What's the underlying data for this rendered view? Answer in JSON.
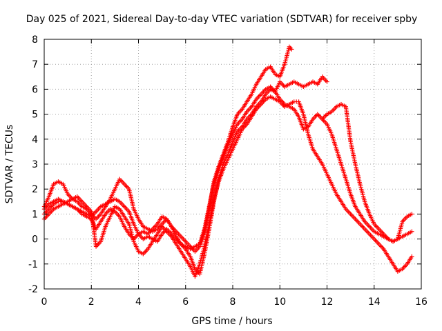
{
  "chart_data": {
    "type": "scatter",
    "title": "Day 025 of 2021, Sidereal Day-to-day VTEC variation (SDTVAR) for receiver spby",
    "xlabel": "GPS time / hours",
    "ylabel": "SDTVAR / TECUs",
    "xlim": [
      0,
      16
    ],
    "ylim": [
      -2,
      8
    ],
    "xticks": [
      "0",
      "2",
      "4",
      "6",
      "8",
      "10",
      "12",
      "14",
      "16"
    ],
    "yticks": [
      "-2",
      "-1",
      "0",
      "1",
      "2",
      "3",
      "4",
      "5",
      "6",
      "7",
      "8"
    ],
    "grid": true,
    "marker": "+",
    "color": "#ff0000",
    "series": [
      {
        "x": [
          0.0,
          0.2,
          0.4,
          0.6,
          0.8,
          1.0,
          1.2,
          1.4,
          1.6,
          1.8,
          2.0,
          2.2,
          2.4,
          2.6,
          2.8,
          3.0,
          3.2,
          3.4,
          3.6,
          3.8,
          4.0,
          4.2,
          4.4,
          4.6,
          4.8,
          5.0,
          5.2,
          5.4,
          5.6,
          5.8,
          6.0,
          6.2,
          6.4,
          6.6,
          6.8,
          7.0,
          7.2,
          7.4,
          7.6,
          7.8,
          8.0,
          8.2,
          8.4,
          8.6,
          8.8,
          9.0,
          9.2,
          9.4,
          9.6,
          9.8,
          10.0,
          10.2,
          10.4,
          10.5
        ],
        "y": [
          1.3,
          1.7,
          2.2,
          2.3,
          2.2,
          1.8,
          1.6,
          1.5,
          1.3,
          1.2,
          1.0,
          0.8,
          1.0,
          1.3,
          1.6,
          2.0,
          2.4,
          2.2,
          2.0,
          1.2,
          0.8,
          0.5,
          0.4,
          0.3,
          0.4,
          0.6,
          0.8,
          0.5,
          0.3,
          0.1,
          -0.1,
          -0.3,
          -0.5,
          -0.3,
          0.3,
          1.2,
          2.3,
          2.9,
          3.4,
          3.9,
          4.5,
          5.0,
          5.2,
          5.5,
          5.8,
          6.2,
          6.5,
          6.8,
          6.9,
          6.6,
          6.5,
          7.0,
          7.7,
          7.6
        ]
      },
      {
        "x": [
          0.0,
          0.2,
          0.4,
          0.6,
          0.8,
          1.0,
          1.2,
          1.4,
          1.6,
          1.8,
          2.0,
          2.2,
          2.4,
          2.6,
          2.8,
          3.0,
          3.2,
          3.4,
          3.6,
          3.8,
          4.0,
          4.2,
          4.4,
          4.6,
          4.8,
          5.0,
          5.2,
          5.4,
          5.6,
          5.8,
          6.0,
          6.2,
          6.4,
          6.6,
          6.8,
          7.0,
          7.2,
          7.4,
          7.6,
          7.8,
          8.0,
          8.2,
          8.4,
          8.6,
          8.8,
          9.0,
          9.2,
          9.4,
          9.6,
          9.8,
          10.0,
          10.2,
          10.4,
          10.6,
          10.8,
          11.0,
          11.2,
          11.4,
          11.6,
          11.8,
          12.0
        ],
        "y": [
          1.0,
          1.2,
          1.4,
          1.5,
          1.5,
          1.4,
          1.3,
          1.2,
          1.1,
          1.0,
          0.9,
          1.1,
          1.3,
          1.4,
          1.5,
          1.6,
          1.5,
          1.3,
          1.1,
          0.6,
          0.2,
          0.0,
          0.1,
          0.0,
          -0.1,
          0.2,
          0.4,
          0.2,
          0.0,
          -0.2,
          -0.4,
          -0.7,
          -1.2,
          -1.4,
          -0.6,
          0.4,
          1.5,
          2.4,
          3.0,
          3.4,
          3.9,
          4.3,
          4.5,
          4.8,
          5.0,
          5.3,
          5.5,
          5.8,
          6.0,
          5.9,
          6.3,
          6.1,
          6.2,
          6.3,
          6.2,
          6.1,
          6.2,
          6.3,
          6.2,
          6.5,
          6.3
        ]
      },
      {
        "x": [
          0.0,
          0.2,
          0.4,
          0.6,
          0.8,
          1.0,
          1.2,
          1.4,
          1.6,
          1.8,
          2.0,
          2.2,
          2.4,
          2.6,
          2.8,
          3.0,
          3.2,
          3.4,
          3.6,
          3.8,
          4.0,
          4.2,
          4.4,
          4.6,
          4.8,
          5.0,
          5.2,
          5.4,
          5.6,
          5.8,
          6.0,
          6.2,
          6.4,
          6.6,
          6.8,
          7.0,
          7.2,
          7.4,
          7.6,
          7.8,
          8.0,
          8.2,
          8.4,
          8.6,
          8.8,
          9.0,
          9.2,
          9.4,
          9.6,
          9.8,
          10.0,
          10.2,
          10.4,
          10.6,
          10.8,
          11.0,
          11.2,
          11.4,
          11.6,
          11.8,
          12.0,
          12.2,
          12.4,
          12.6,
          12.8,
          13.0,
          13.2,
          13.4,
          13.6,
          13.8,
          14.0,
          14.2,
          14.4,
          14.6,
          14.8,
          15.0,
          15.2,
          15.4,
          15.6
        ],
        "y": [
          0.8,
          1.0,
          1.2,
          1.3,
          1.4,
          1.5,
          1.6,
          1.7,
          1.5,
          1.3,
          1.1,
          -0.3,
          -0.1,
          0.5,
          0.9,
          1.3,
          1.2,
          0.9,
          0.6,
          -0.1,
          -0.5,
          -0.6,
          -0.4,
          -0.1,
          0.2,
          0.5,
          0.3,
          0.1,
          -0.2,
          -0.5,
          -0.8,
          -1.1,
          -1.5,
          -1.0,
          -0.3,
          0.6,
          1.6,
          2.3,
          2.8,
          3.2,
          3.6,
          4.0,
          4.4,
          4.6,
          4.9,
          5.2,
          5.4,
          5.6,
          5.7,
          5.6,
          5.5,
          5.3,
          5.4,
          5.5,
          5.5,
          5.0,
          4.2,
          3.6,
          3.3,
          3.0,
          2.6,
          2.2,
          1.8,
          1.5,
          1.2,
          1.0,
          0.8,
          0.6,
          0.4,
          0.2,
          0.0,
          -0.2,
          -0.4,
          -0.7,
          -1.0,
          -1.3,
          -1.2,
          -1.0,
          -0.7
        ]
      },
      {
        "x": [
          0.0,
          0.2,
          0.4,
          0.6,
          0.8,
          1.0,
          1.2,
          1.4,
          1.6,
          1.8,
          2.0,
          2.2,
          2.4,
          2.6,
          2.8,
          3.0,
          3.2,
          3.4,
          3.6,
          3.8,
          4.0,
          4.2,
          4.4,
          4.6,
          4.8,
          5.0,
          5.2,
          5.4,
          5.6,
          5.8,
          6.0,
          6.2,
          6.4,
          6.6,
          6.8,
          7.0,
          7.2,
          7.4,
          7.6,
          7.8,
          8.0,
          8.2,
          8.4,
          8.6,
          8.8,
          9.0,
          9.2,
          9.4,
          9.6,
          9.8,
          10.0,
          10.2,
          10.4,
          10.6,
          10.8,
          11.0,
          11.2,
          11.4,
          11.6,
          11.8,
          12.0,
          12.2,
          12.4,
          12.6,
          12.8,
          13.0,
          13.2,
          13.4,
          13.6,
          13.8,
          14.0,
          14.2,
          14.4,
          14.6,
          14.8,
          15.0,
          15.2,
          15.4,
          15.6
        ],
        "y": [
          1.2,
          1.4,
          1.5,
          1.6,
          1.5,
          1.4,
          1.3,
          1.2,
          1.0,
          0.9,
          0.8,
          0.4,
          0.7,
          1.0,
          1.2,
          1.1,
          0.9,
          0.5,
          0.2,
          0.0,
          0.2,
          0.3,
          0.2,
          0.4,
          0.6,
          0.9,
          0.8,
          0.5,
          0.1,
          -0.2,
          -0.3,
          -0.4,
          -0.3,
          -0.2,
          0.4,
          1.3,
          2.2,
          2.8,
          3.3,
          3.8,
          4.2,
          4.6,
          4.8,
          5.1,
          5.3,
          5.6,
          5.8,
          6.0,
          6.1,
          5.9,
          5.6,
          5.4,
          5.3,
          5.2,
          4.9,
          4.4,
          4.5,
          4.8,
          5.0,
          4.8,
          4.6,
          4.2,
          3.6,
          3.0,
          2.4,
          1.8,
          1.3,
          1.0,
          0.7,
          0.5,
          0.3,
          0.2,
          0.1,
          0.0,
          -0.1,
          0.0,
          0.1,
          0.2,
          0.3
        ]
      },
      {
        "x": [
          11.8,
          12.0,
          12.2,
          12.4,
          12.6,
          12.8,
          13.0,
          13.2,
          13.4,
          13.6,
          13.8,
          14.0,
          14.2,
          14.4,
          14.6,
          14.8,
          15.0,
          15.2,
          15.4,
          15.6
        ],
        "y": [
          4.8,
          5.0,
          5.1,
          5.3,
          5.4,
          5.3,
          3.9,
          3.0,
          2.2,
          1.5,
          1.0,
          0.6,
          0.4,
          0.2,
          0.0,
          -0.1,
          0.0,
          0.7,
          0.9,
          1.0
        ]
      }
    ]
  }
}
